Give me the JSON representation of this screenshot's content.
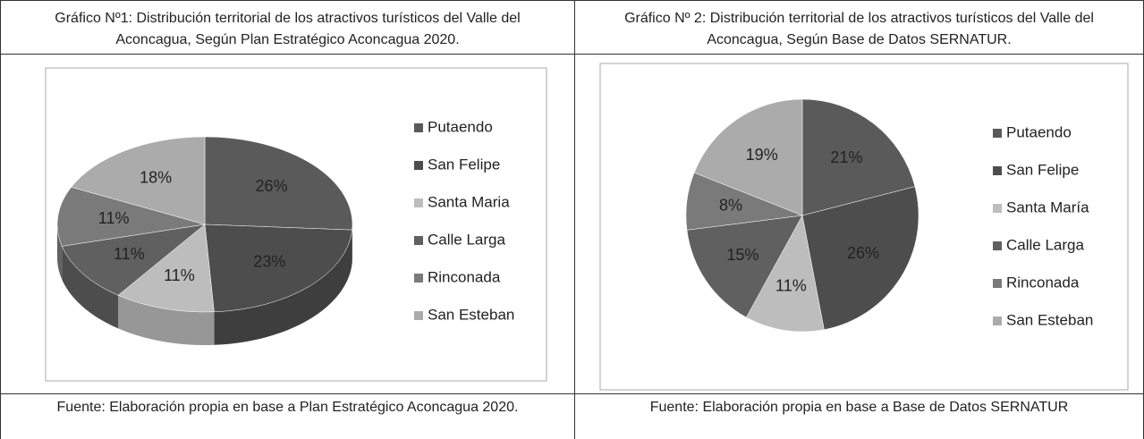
{
  "chart_data": [
    {
      "type": "pie",
      "three_d": true,
      "title": "Gráfico Nº1: Distribución territorial de los atractivos turísticos del Valle del Aconcagua, Según Plan Estratégico Aconcagua 2020.",
      "source": "Fuente: Elaboración propia en base a Plan Estratégico Aconcagua 2020.",
      "categories": [
        "Putaendo",
        "San Felipe",
        "Santa Maria",
        "Calle Larga",
        "Rinconada",
        "San Esteban"
      ],
      "values": [
        26,
        23,
        11,
        11,
        11,
        18
      ],
      "value_labels": [
        "26%",
        "23%",
        "11%",
        "11%",
        "11%",
        "18%"
      ],
      "colors": [
        "#5a5a5a",
        "#4d4d4d",
        "#bdbdbd",
        "#606060",
        "#7a7a7a",
        "#ababab"
      ]
    },
    {
      "type": "pie",
      "three_d": false,
      "title": "Gráfico Nº 2: Distribución territorial de los atractivos turísticos del Valle del Aconcagua, Según Base de Datos SERNATUR.",
      "source": "Fuente: Elaboración propia en base a Base de Datos SERNATUR",
      "categories": [
        "Putaendo",
        "San Felipe",
        "Santa María",
        "Calle Larga",
        "Rinconada",
        "San Esteban"
      ],
      "values": [
        21,
        26,
        11,
        15,
        8,
        19
      ],
      "value_labels": [
        "21%",
        "26%",
        "11%",
        "15%",
        "8%",
        "19%"
      ],
      "colors": [
        "#5a5a5a",
        "#4d4d4d",
        "#bdbdbd",
        "#606060",
        "#7a7a7a",
        "#ababab"
      ]
    }
  ]
}
